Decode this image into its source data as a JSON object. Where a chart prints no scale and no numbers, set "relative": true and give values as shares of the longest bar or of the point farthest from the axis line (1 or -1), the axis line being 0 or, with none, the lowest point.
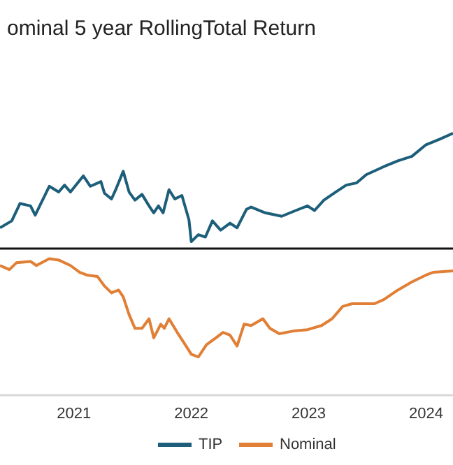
{
  "chart_data": [
    {
      "type": "line",
      "title": "ominal 5 year RollingTotal Return",
      "relative": true,
      "xlim": [
        2020.37,
        2024.23
      ],
      "xticks": [
        2021,
        2022,
        2023,
        2024
      ],
      "legend": "bottom",
      "tick_labels": false,
      "series": [
        {
          "name": "TIP",
          "color": "#1d5f7a",
          "x": [
            2020.37,
            2020.47,
            2020.54,
            2020.63,
            2020.67,
            2020.79,
            2020.87,
            2020.92,
            2020.97,
            2021.08,
            2021.14,
            2021.23,
            2021.26,
            2021.32,
            2021.36,
            2021.42,
            2021.47,
            2021.52,
            2021.58,
            2021.64,
            2021.68,
            2021.72,
            2021.76,
            2021.81,
            2021.86,
            2021.92,
            2021.98,
            2022.0,
            2022.06,
            2022.12,
            2022.18,
            2022.25,
            2022.33,
            2022.39,
            2022.47,
            2022.51,
            2022.63,
            2022.77,
            2022.89,
            2022.99,
            2023.05,
            2023.13,
            2023.23,
            2023.32,
            2023.41,
            2023.49,
            2023.64,
            2023.76,
            2023.88,
            2024.0,
            2024.12,
            2024.23
          ],
          "values": [
            0.18,
            0.24,
            0.39,
            0.37,
            0.29,
            0.54,
            0.49,
            0.55,
            0.49,
            0.63,
            0.54,
            0.58,
            0.48,
            0.43,
            0.52,
            0.67,
            0.49,
            0.42,
            0.47,
            0.37,
            0.31,
            0.37,
            0.31,
            0.51,
            0.43,
            0.46,
            0.25,
            0.06,
            0.12,
            0.1,
            0.24,
            0.16,
            0.22,
            0.18,
            0.34,
            0.36,
            0.31,
            0.28,
            0.33,
            0.37,
            0.33,
            0.42,
            0.49,
            0.55,
            0.57,
            0.64,
            0.71,
            0.76,
            0.8,
            0.9,
            0.95,
            1
          ]
        }
      ]
    },
    {
      "type": "line",
      "relative": true,
      "xlim": [
        2020.37,
        2024.23
      ],
      "xticks": [
        2021,
        2022,
        2023,
        2024
      ],
      "legend": "bottom",
      "tick_labels": "x",
      "series": [
        {
          "name": "Nominal",
          "color": "#e07f35",
          "x": [
            2020.37,
            2020.45,
            2020.51,
            2020.63,
            2020.68,
            2020.79,
            2020.87,
            2020.97,
            2021.05,
            2021.11,
            2021.2,
            2021.26,
            2021.32,
            2021.38,
            2021.42,
            2021.47,
            2021.52,
            2021.58,
            2021.64,
            2021.68,
            2021.74,
            2021.77,
            2021.81,
            2021.88,
            2021.94,
            2022.0,
            2022.06,
            2022.13,
            2022.21,
            2022.27,
            2022.33,
            2022.39,
            2022.45,
            2022.51,
            2022.61,
            2022.67,
            2022.75,
            2022.87,
            2022.99,
            2023.11,
            2023.2,
            2023.29,
            2023.37,
            2023.47,
            2023.56,
            2023.64,
            2023.76,
            2023.88,
            2024.0,
            2024.06,
            2024.23
          ],
          "values": [
            0.95,
            0.92,
            0.97,
            0.98,
            0.95,
            1,
            0.99,
            0.95,
            0.9,
            0.88,
            0.87,
            0.8,
            0.75,
            0.77,
            0.72,
            0.59,
            0.49,
            0.49,
            0.56,
            0.42,
            0.52,
            0.49,
            0.56,
            0.46,
            0.38,
            0.3,
            0.28,
            0.37,
            0.42,
            0.46,
            0.44,
            0.36,
            0.52,
            0.51,
            0.56,
            0.49,
            0.45,
            0.47,
            0.48,
            0.51,
            0.56,
            0.65,
            0.67,
            0.67,
            0.67,
            0.7,
            0.77,
            0.83,
            0.88,
            0.9,
            0.91
          ]
        }
      ]
    }
  ]
}
